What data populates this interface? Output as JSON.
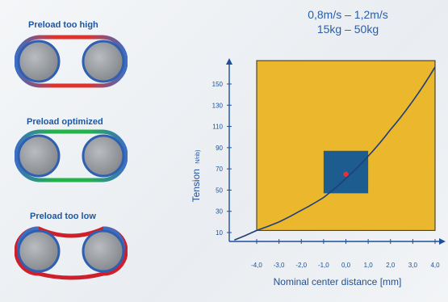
{
  "preload": [
    {
      "label": "Preload too high",
      "belt_colors": [
        "#3c6fc4",
        "#e0322c"
      ]
    },
    {
      "label": "Preload optimized",
      "belt_colors": [
        "#3c6fc4",
        "#22b34a"
      ]
    },
    {
      "label": "Preload too low",
      "belt_colors": [
        "#3c6fc4",
        "#d01f2a"
      ]
    }
  ],
  "info": {
    "speed": "0,8m/s – 1,2m/s",
    "mass": "15kg – 50kg"
  },
  "chart": {
    "y_label": "Tension",
    "y_unit": "N/rib)",
    "x_label": "Nominal center distance [mm]",
    "colors": {
      "region": "#eab72d",
      "optimum": "#1d5c8e",
      "curve": "#1f3f7a",
      "point": "#e8303a"
    }
  },
  "chart_data": {
    "type": "line",
    "x_ticks": [
      "-4,0",
      "-3,0",
      "-2,0",
      "-1,0",
      "0,0",
      "1,0",
      "2,0",
      "3,0",
      "4,0"
    ],
    "y_ticks": [
      "10",
      "30",
      "50",
      "70",
      "90",
      "110",
      "130",
      "150"
    ],
    "x_values": [
      -5.0,
      -4.0,
      -3.0,
      -2.0,
      -1.0,
      0.0,
      1.0,
      2.0,
      3.0,
      4.0
    ],
    "tension_curve": [
      3,
      12,
      20,
      31,
      43,
      61,
      82,
      107,
      134,
      166
    ],
    "acceptable_region": {
      "x_range": [
        -4.0,
        4.0
      ],
      "tension_range": [
        12,
        172
      ]
    },
    "optimum_region": {
      "x_range": [
        -1.0,
        1.0
      ],
      "tension_range": [
        47,
        87
      ]
    },
    "operating_point": {
      "x": 0.0,
      "tension": 65
    },
    "xlim": [
      -5.0,
      4.2
    ],
    "ylim": [
      0,
      178
    ]
  }
}
